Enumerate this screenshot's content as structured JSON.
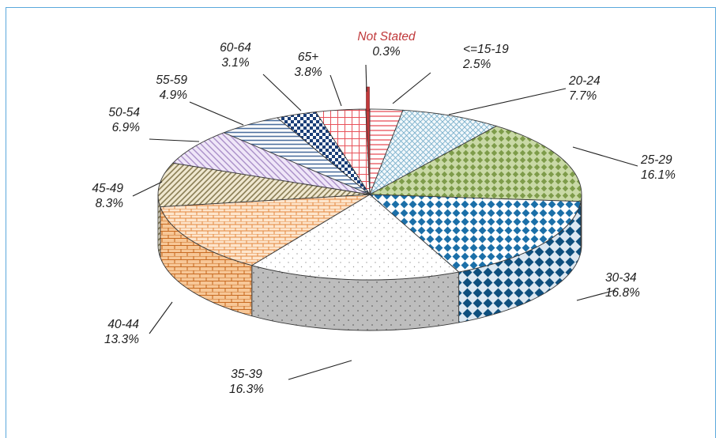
{
  "chart_data": {
    "type": "pie",
    "style": "3d-exploded-edges",
    "start": "top (12 o'clock), clockwise",
    "slices": [
      {
        "label": "<=15-19",
        "value": 2.5,
        "pct_label": "2.5%",
        "color": "#e8525a",
        "pattern": "red-hlines"
      },
      {
        "label": "20-24",
        "value": 7.7,
        "pct_label": "7.7%",
        "color": "#7ab0cc",
        "pattern": "light-blue-crosshatch"
      },
      {
        "label": "25-29",
        "value": 16.1,
        "pct_label": "16.1%",
        "color": "#7e9c4a",
        "pattern": "green-diamonds"
      },
      {
        "label": "30-34",
        "value": 16.8,
        "pct_label": "16.8%",
        "color": "#1b6fa8",
        "pattern": "blue-diamonds"
      },
      {
        "label": "35-39",
        "value": 16.3,
        "pct_label": "16.3%",
        "color": "#9a9a9a",
        "pattern": "grey-dots"
      },
      {
        "label": "40-44",
        "value": 13.3,
        "pct_label": "13.3%",
        "color": "#e3883e",
        "pattern": "orange-bricks"
      },
      {
        "label": "45-49",
        "value": 8.3,
        "pct_label": "8.3%",
        "color": "#8a7e55",
        "pattern": "olive-diagonal"
      },
      {
        "label": "50-54",
        "value": 6.9,
        "pct_label": "6.9%",
        "color": "#a98fc8",
        "pattern": "lavender-diagonal"
      },
      {
        "label": "55-59",
        "value": 4.9,
        "pct_label": "4.9%",
        "color": "#4c6f9e",
        "pattern": "navy-hlines"
      },
      {
        "label": "60-64",
        "value": 3.1,
        "pct_label": "3.1%",
        "color": "#1a3e78",
        "pattern": "navy-checks"
      },
      {
        "label": "65+",
        "value": 3.8,
        "pct_label": "3.8%",
        "color": "#e8525a",
        "pattern": "red-grid"
      },
      {
        "label": "Not Stated",
        "value": 0.3,
        "pct_label": "0.3%",
        "color": "#c0393b",
        "pattern": "solid-red"
      }
    ]
  }
}
